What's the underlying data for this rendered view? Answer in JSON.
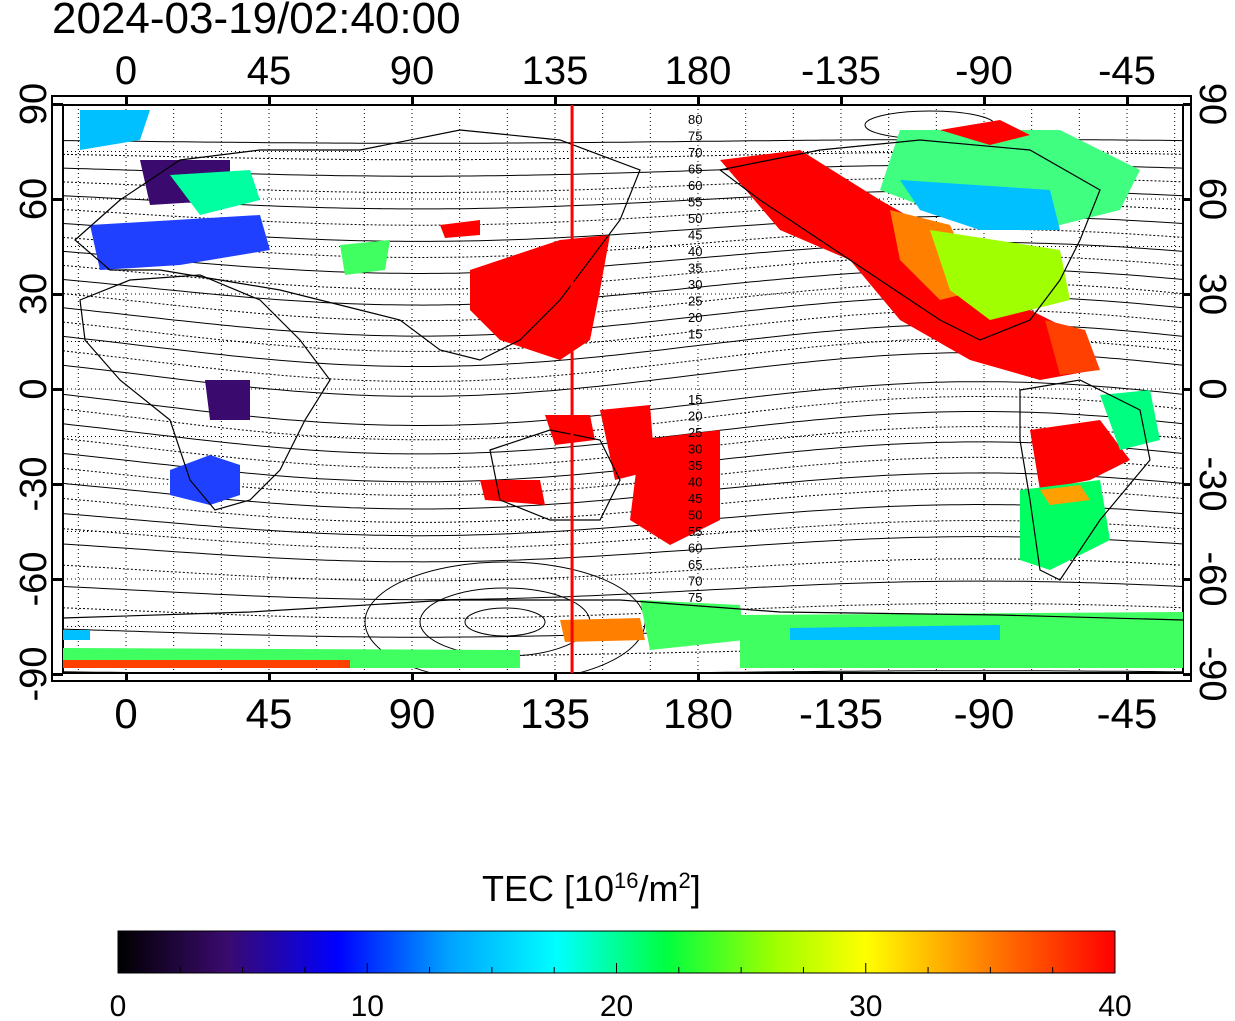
{
  "header": {
    "timestamp": "2024-03-19/02:40:00"
  },
  "map": {
    "top_lon_ticks": [
      "0",
      "45",
      "90",
      "135",
      "180",
      "-135",
      "-90",
      "-45"
    ],
    "bottom_lon_ticks": [
      "0",
      "45",
      "90",
      "135",
      "180",
      "-135",
      "-90",
      "-45"
    ],
    "left_lat_ticks": [
      "90",
      "60",
      "30",
      "0",
      "-30",
      "-60",
      "-90"
    ],
    "right_lat_ticks": [
      "90",
      "60",
      "30",
      "0",
      "-30",
      "-60",
      "-90"
    ],
    "contour_labels_north": [
      "80",
      "75",
      "70",
      "65",
      "60",
      "55",
      "50",
      "45",
      "40",
      "35",
      "30",
      "25",
      "20",
      "15"
    ],
    "contour_labels_south": [
      "15",
      "20",
      "25",
      "30",
      "35",
      "40",
      "45",
      "50",
      "55",
      "60",
      "65",
      "70",
      "75"
    ],
    "terminator_longitude": 141,
    "terminator_color": "#ff0000"
  },
  "colorbar": {
    "title": "TEC  [10",
    "title_sup": "16",
    "title_mid": "/m",
    "title_sup2": "2",
    "title_end": "]",
    "min": 0,
    "max": 40,
    "ticks": [
      "0",
      "10",
      "20",
      "30",
      "40"
    ],
    "colors": [
      "#000000",
      "#3a0a6e",
      "#0000ff",
      "#00a0ff",
      "#00ffff",
      "#00ff40",
      "#a0ff00",
      "#ffff00",
      "#ff8000",
      "#ff0000"
    ]
  }
}
